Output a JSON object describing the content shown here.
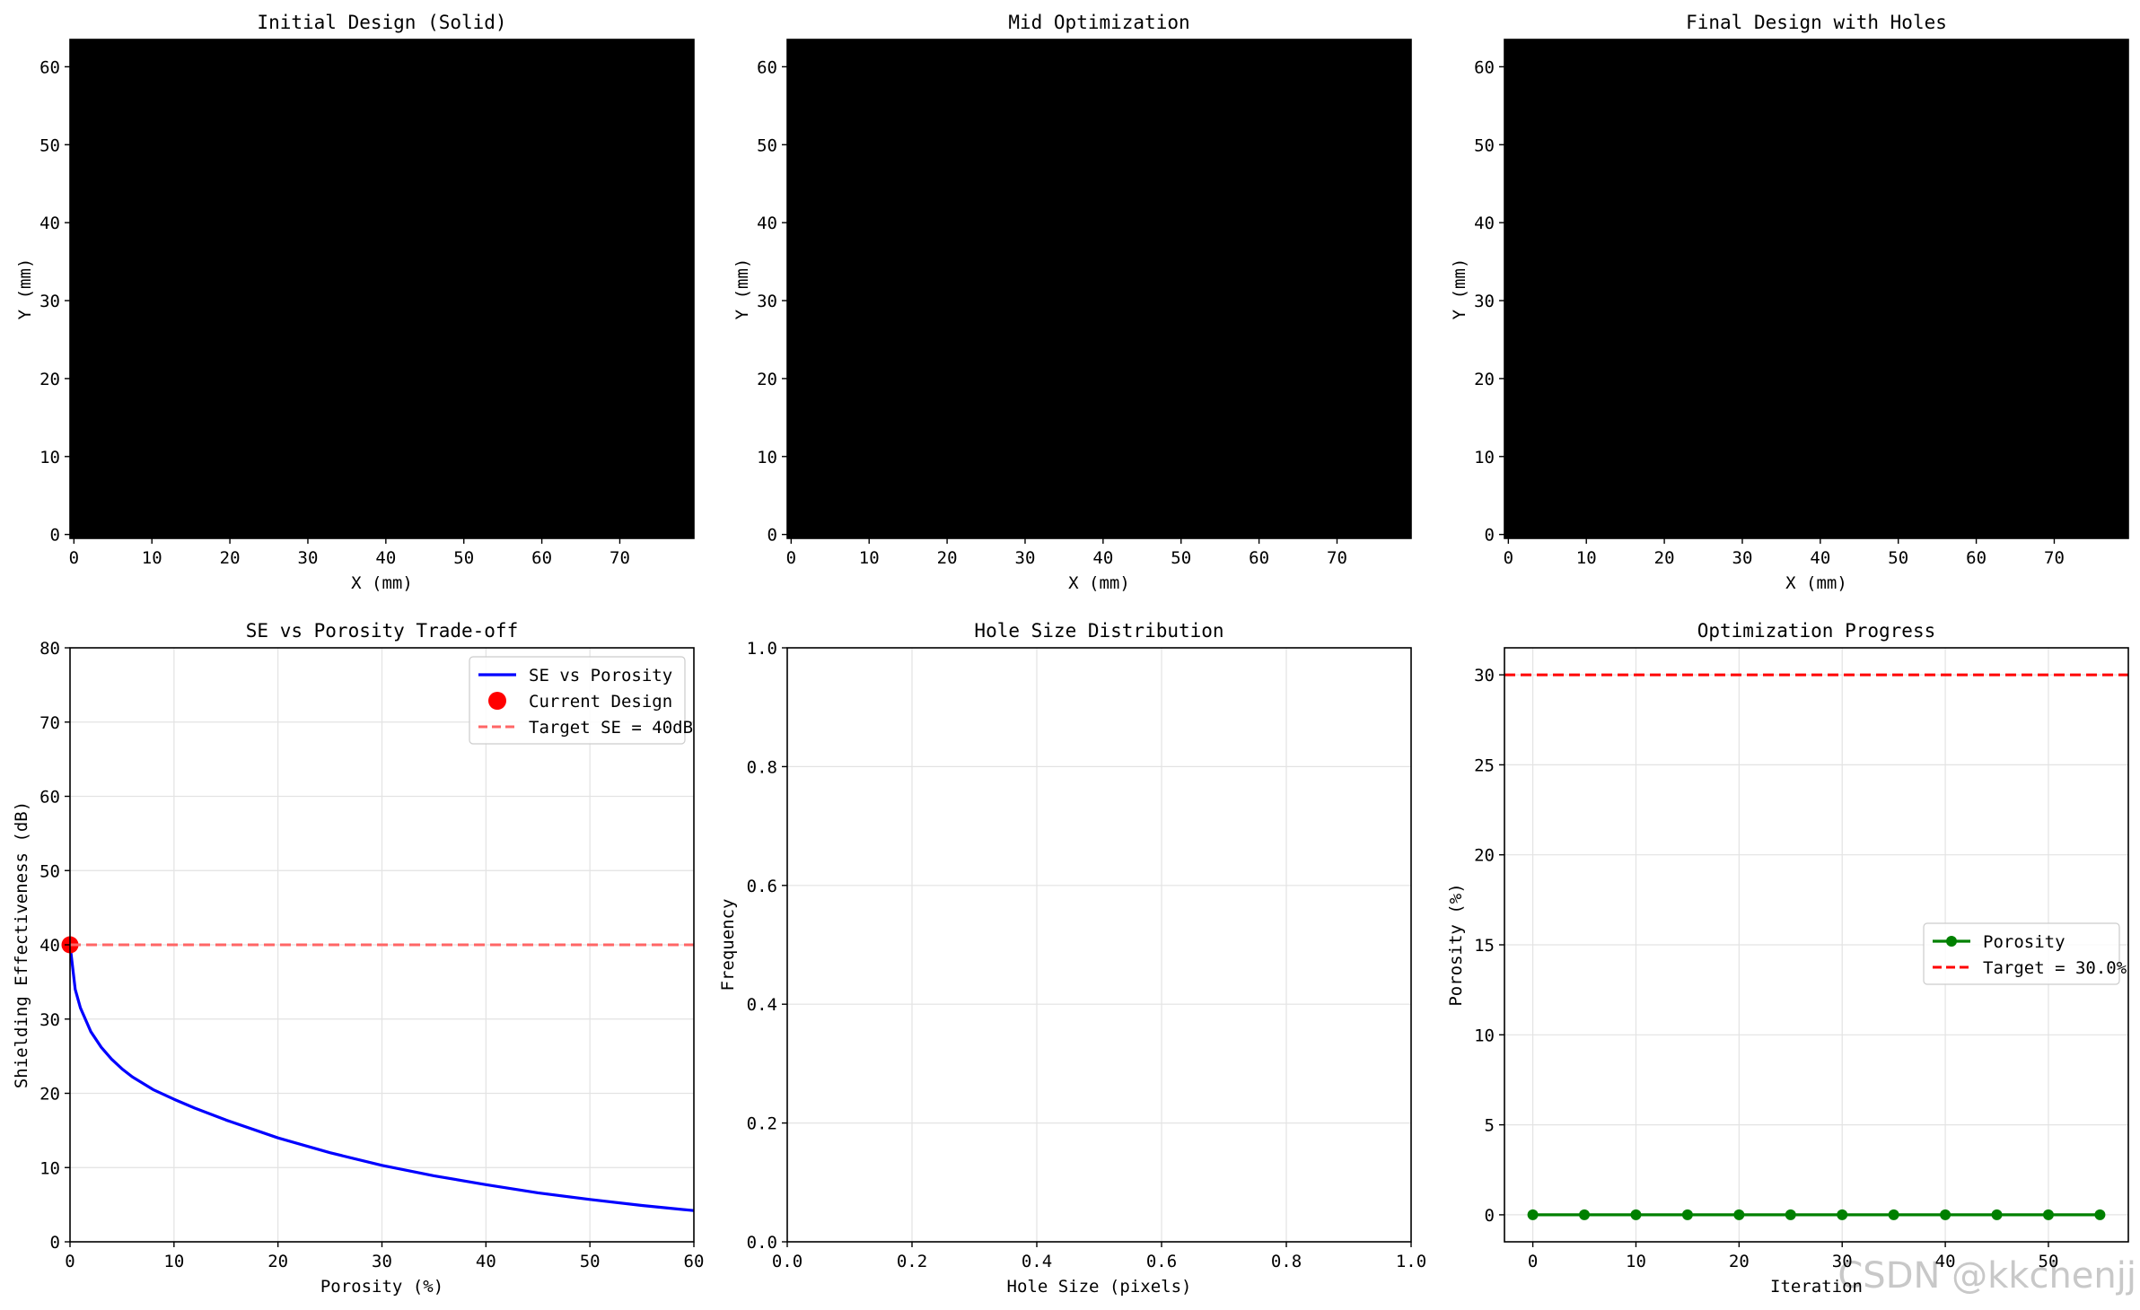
{
  "chart_data": [
    {
      "type": "heatmap",
      "title": "Initial Design (Solid)",
      "xlabel": "X (mm)",
      "ylabel": "Y (mm)",
      "xlim": [
        -0.5,
        79.5
      ],
      "ylim": [
        -0.5,
        63.5
      ],
      "xticks": [
        0,
        10,
        20,
        30,
        40,
        50,
        60,
        70
      ],
      "yticks": [
        0,
        10,
        20,
        30,
        40,
        50,
        60
      ],
      "fill": "solid",
      "fill_color": "#000000"
    },
    {
      "type": "heatmap",
      "title": "Mid Optimization",
      "xlabel": "X (mm)",
      "ylabel": "Y (mm)",
      "xlim": [
        -0.5,
        79.5
      ],
      "ylim": [
        -0.5,
        63.5
      ],
      "xticks": [
        0,
        10,
        20,
        30,
        40,
        50,
        60,
        70
      ],
      "yticks": [
        0,
        10,
        20,
        30,
        40,
        50,
        60
      ],
      "fill": "solid",
      "fill_color": "#000000"
    },
    {
      "type": "heatmap",
      "title": "Final Design with Holes",
      "xlabel": "X (mm)",
      "ylabel": "Y (mm)",
      "xlim": [
        -0.5,
        79.5
      ],
      "ylim": [
        -0.5,
        63.5
      ],
      "xticks": [
        0,
        10,
        20,
        30,
        40,
        50,
        60,
        70
      ],
      "yticks": [
        0,
        10,
        20,
        30,
        40,
        50,
        60
      ],
      "fill": "solid",
      "fill_color": "#000000"
    },
    {
      "type": "line",
      "title": "SE vs Porosity Trade-off",
      "xlabel": "Porosity (%)",
      "ylabel": "Shielding Effectiveness (dB)",
      "xlim": [
        0,
        60
      ],
      "ylim": [
        0,
        80
      ],
      "xticks": [
        0,
        10,
        20,
        30,
        40,
        50,
        60
      ],
      "yticks": [
        0,
        10,
        20,
        30,
        40,
        50,
        60,
        70,
        80
      ],
      "grid": true,
      "legend_position": "top-right",
      "series": [
        {
          "name": "SE vs Porosity",
          "color": "#0000ff",
          "x": [
            0,
            0.5,
            1,
            2,
            3,
            4,
            5,
            6,
            8,
            10,
            12,
            15,
            20,
            25,
            30,
            35,
            40,
            45,
            50,
            55,
            60
          ],
          "values": [
            40,
            34,
            31.5,
            28.3,
            26.2,
            24.6,
            23.3,
            22.2,
            20.5,
            19.2,
            18.0,
            16.4,
            14.0,
            12.0,
            10.3,
            8.9,
            7.7,
            6.6,
            5.7,
            4.9,
            4.2
          ]
        },
        {
          "name": "Current Design",
          "color": "#ff0000",
          "marker": "circle",
          "x": [
            0
          ],
          "values": [
            40
          ]
        },
        {
          "name": "Target SE = 40dB",
          "color": "#ff6666",
          "style": "dashed",
          "hline": 40
        }
      ]
    },
    {
      "type": "bar",
      "title": "Hole Size Distribution",
      "xlabel": "Hole Size (pixels)",
      "ylabel": "Frequency",
      "xlim": [
        0,
        1
      ],
      "ylim": [
        0,
        1
      ],
      "xticks": [
        "0.0",
        "0.2",
        "0.4",
        "0.6",
        "0.8",
        "1.0"
      ],
      "yticks": [
        "0.0",
        "0.2",
        "0.4",
        "0.6",
        "0.8",
        "1.0"
      ],
      "grid": true,
      "values": []
    },
    {
      "type": "line",
      "title": "Optimization Progress",
      "xlabel": "Iteration",
      "ylabel": "Porosity (%)",
      "xlim": [
        -2.75,
        57.75
      ],
      "ylim": [
        -1.5,
        31.5
      ],
      "xticks": [
        0,
        10,
        20,
        30,
        40,
        50
      ],
      "yticks": [
        0,
        5,
        10,
        15,
        20,
        25,
        30
      ],
      "grid": true,
      "legend_position": "center-right",
      "series": [
        {
          "name": "Porosity",
          "color": "#008000",
          "marker": "circle",
          "x": [
            0,
            5,
            10,
            15,
            20,
            25,
            30,
            35,
            40,
            45,
            50,
            55
          ],
          "values": [
            0,
            0,
            0,
            0,
            0,
            0,
            0,
            0,
            0,
            0,
            0,
            0
          ]
        },
        {
          "name": "Target = 30.0%",
          "color": "#ff0000",
          "style": "dashed",
          "hline": 30
        }
      ]
    }
  ],
  "watermark": "CSDN @kkchenjj"
}
